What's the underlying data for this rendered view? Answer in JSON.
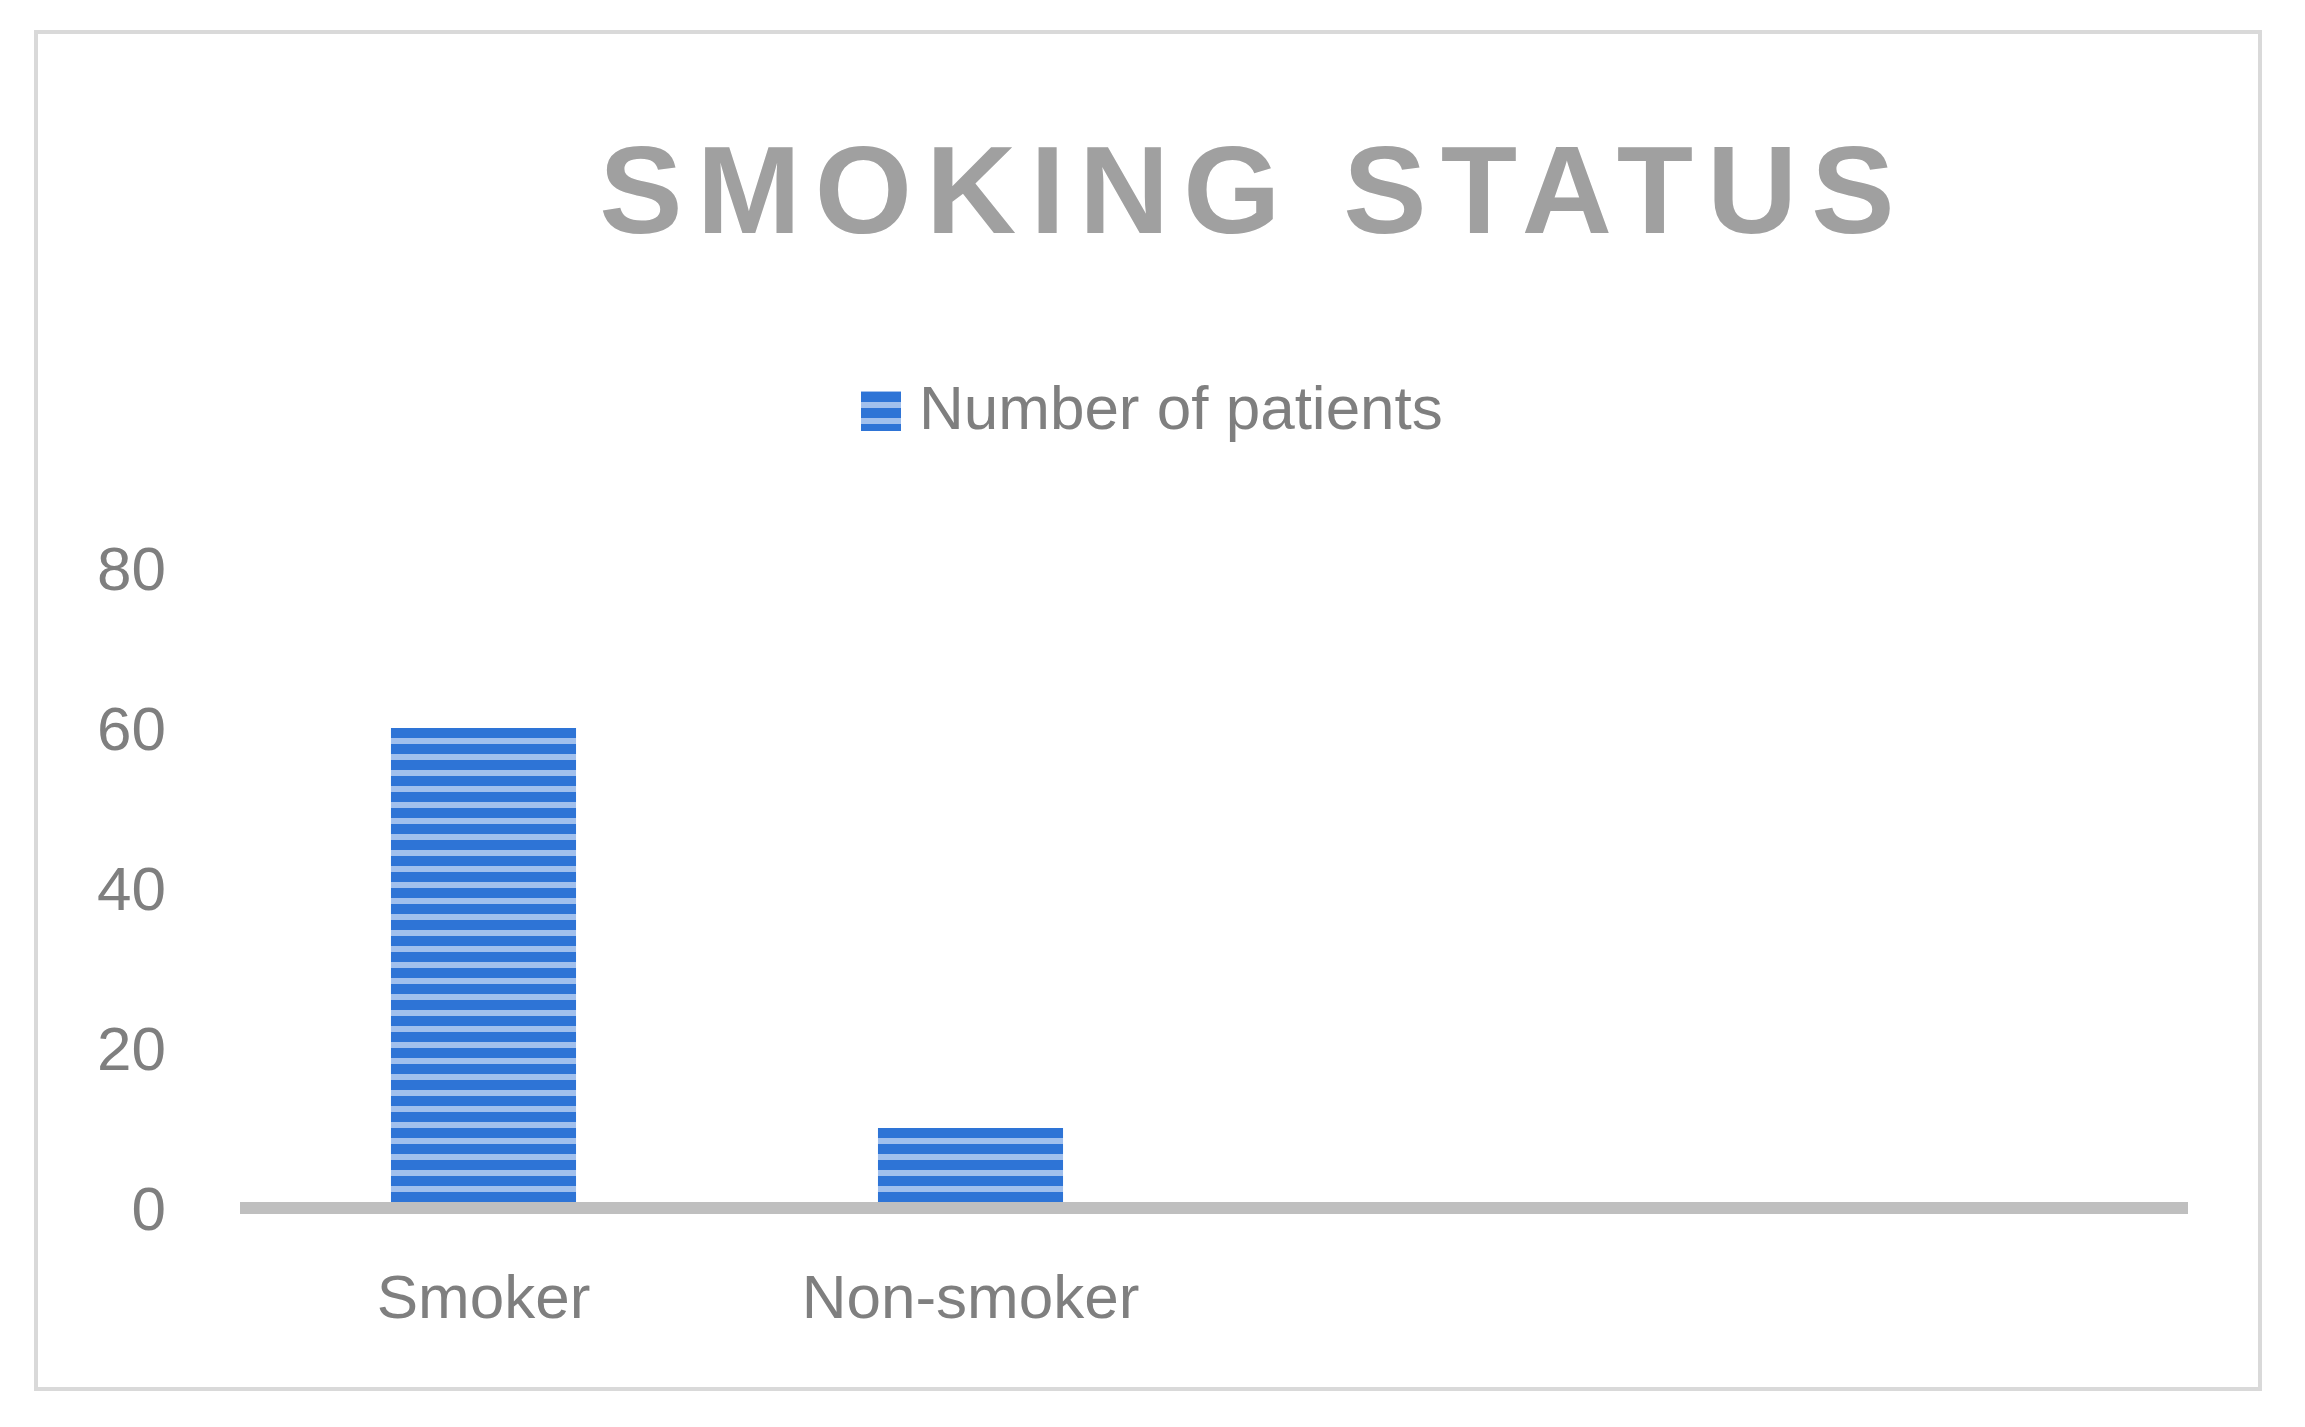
{
  "chart_data": {
    "type": "bar",
    "title": "SMOKING STATUS",
    "categories": [
      "Smoker",
      "Non-smoker",
      null,
      null
    ],
    "series": [
      {
        "name": "Number of patients",
        "color": "#2e74d6",
        "values": [
          60,
          10,
          null,
          null
        ]
      }
    ],
    "ylim": [
      0,
      80
    ],
    "yticks": [
      0,
      20,
      40,
      60,
      80
    ],
    "grid": false,
    "legend": "top"
  }
}
